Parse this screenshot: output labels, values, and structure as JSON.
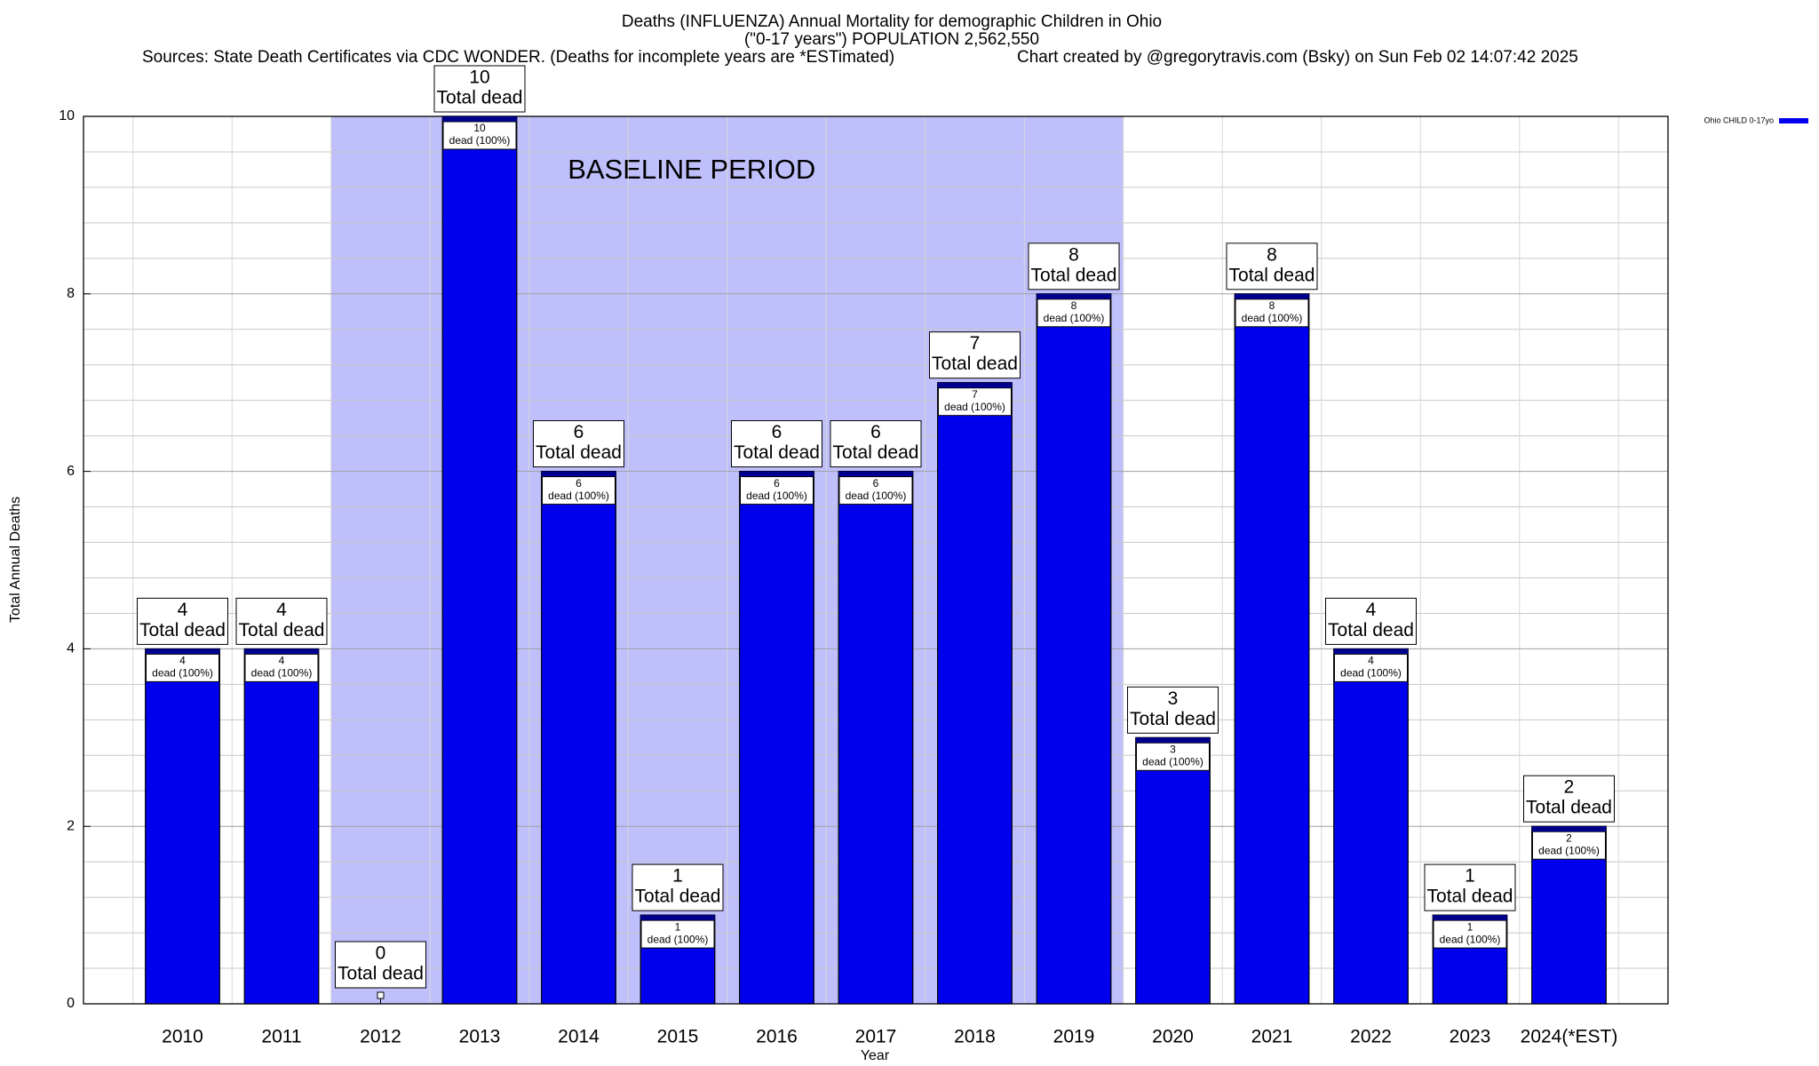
{
  "chart_data": {
    "type": "bar",
    "title": "Deaths (INFLUENZA) Annual Mortality for demographic Children in Ohio",
    "subtitle": "(\"0-17 years\") POPULATION 2,562,550",
    "source": "Sources: State Death Certificates via CDC WONDER. (Deaths for incomplete years are *ESTimated)",
    "credit": "Chart created by @gregorytravis.com (Bsky) on Sun Feb 02 14:07:42 2025",
    "x_label": "Year",
    "y_label": "Total Annual Deaths",
    "categories": [
      "2010",
      "2011",
      "2012",
      "2013",
      "2014",
      "2015",
      "2016",
      "2017",
      "2018",
      "2019",
      "2020",
      "2021",
      "2022",
      "2023",
      "2024(*EST)"
    ],
    "series": [
      {
        "name": "Ohio CHILD 0-17yo",
        "color": "#0000ee",
        "values": [
          4,
          4,
          0,
          10,
          6,
          1,
          6,
          6,
          7,
          8,
          3,
          8,
          4,
          1,
          2
        ]
      }
    ],
    "total_note": "Total dead",
    "bar_note": "dead (100%)",
    "shaded_region": {
      "label": "BASELINE PERIOD",
      "from": "2012",
      "to": "2019",
      "color": "#bfbffb"
    },
    "ylim": [
      0,
      10
    ],
    "yticks": [
      0,
      2,
      4,
      6,
      8,
      10
    ],
    "y_minor_ticks": [
      0.4,
      0.8,
      1.2,
      1.6,
      2.4,
      2.8,
      3.2,
      3.6,
      4.4,
      4.8,
      5.2,
      5.6,
      6.4,
      6.8,
      7.2,
      7.6,
      8.4,
      8.8,
      9.2,
      9.6
    ],
    "grid": true,
    "legend": "top-right"
  }
}
